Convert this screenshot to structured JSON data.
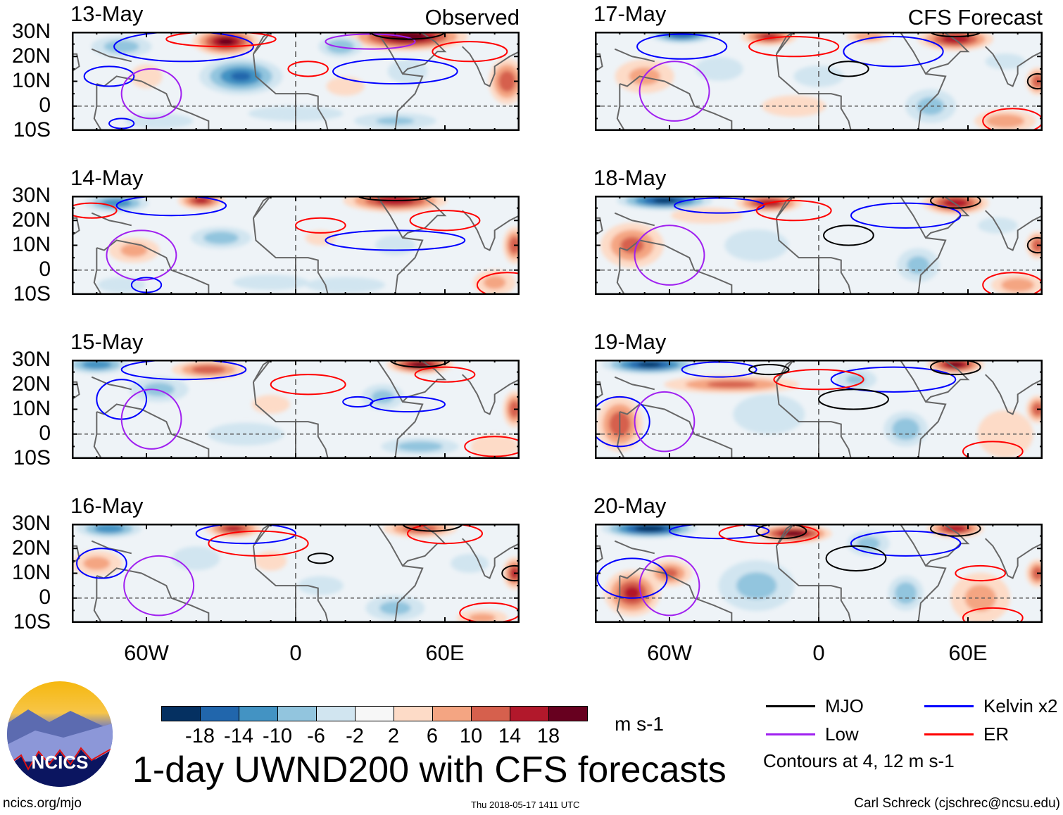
{
  "chart_data": {
    "type": "heatmap",
    "title": "1-day UWND200 with CFS forecasts",
    "units": "m s-1",
    "lon_range": [
      -90,
      90
    ],
    "lat_range": [
      -10,
      30
    ],
    "lat_ticks": [
      "30N",
      "20N",
      "10N",
      "0",
      "10S"
    ],
    "lon_ticks": [
      "60W",
      "0",
      "60E"
    ],
    "column_labels": {
      "observed": "Observed",
      "forecast": "CFS Forecast"
    },
    "colorbar": {
      "levels": [
        "-18",
        "-14",
        "-10",
        "-6",
        "-2",
        "2",
        "6",
        "10",
        "14",
        "18"
      ],
      "colors": [
        "#053061",
        "#2166ac",
        "#4393c3",
        "#92c5de",
        "#d1e5f0",
        "#f7f7f7",
        "#fddbc7",
        "#f4a582",
        "#d6604d",
        "#b2182b",
        "#67001f"
      ]
    },
    "legend": [
      {
        "label": "MJO",
        "color": "#000000"
      },
      {
        "label": "Kelvin x2",
        "color": "#0000ff"
      },
      {
        "label": "Low",
        "color": "#a020f0"
      },
      {
        "label": "ER",
        "color": "#ff0000"
      }
    ],
    "contour_note": "Contours at 4, 12 m s-1",
    "panels": [
      {
        "date": "13-May",
        "column": "observed",
        "blobs": [
          [
            -28,
            26,
            20,
            14,
            6
          ],
          [
            45,
            28,
            22,
            25,
            6
          ],
          [
            85,
            10,
            14,
            8,
            10
          ],
          [
            -60,
            12,
            6,
            8,
            6
          ],
          [
            20,
            8,
            5,
            10,
            5
          ],
          [
            -22,
            12,
            -15,
            18,
            8
          ],
          [
            -70,
            24,
            -9,
            14,
            5
          ],
          [
            18,
            24,
            -10,
            10,
            5
          ],
          [
            45,
            14,
            -6,
            10,
            6
          ],
          [
            -55,
            -6,
            -5,
            18,
            4
          ],
          [
            40,
            -6,
            -7,
            20,
            4
          ],
          [
            0,
            -3,
            -5,
            25,
            4
          ]
        ],
        "contours": [
          [
            "kelvin",
            -45,
            24,
            28,
            6
          ],
          [
            "kelvin",
            -75,
            12,
            10,
            4
          ],
          [
            "kelvin",
            40,
            14,
            25,
            5
          ],
          [
            "er",
            -30,
            27,
            22,
            3
          ],
          [
            "er",
            5,
            15,
            8,
            3
          ],
          [
            "er",
            70,
            22,
            15,
            4
          ],
          [
            "low",
            -58,
            5,
            12,
            10
          ],
          [
            "low",
            30,
            26,
            18,
            3
          ],
          [
            "mjo",
            45,
            30,
            15,
            3
          ],
          [
            "kelvin",
            -70,
            -7,
            5,
            2
          ]
        ]
      },
      {
        "date": "14-May",
        "column": "observed",
        "blobs": [
          [
            -38,
            28,
            16,
            10,
            4
          ],
          [
            40,
            28,
            18,
            22,
            5
          ],
          [
            88,
            10,
            14,
            5,
            8
          ],
          [
            -65,
            8,
            8,
            12,
            6
          ],
          [
            10,
            13,
            5,
            8,
            4
          ],
          [
            80,
            -5,
            8,
            10,
            6
          ],
          [
            -72,
            27,
            -14,
            14,
            4
          ],
          [
            -30,
            13,
            -9,
            14,
            5
          ],
          [
            -70,
            -6,
            -6,
            12,
            4
          ],
          [
            20,
            -6,
            -6,
            20,
            4
          ],
          [
            40,
            10,
            -6,
            10,
            5
          ],
          [
            -10,
            -5,
            -5,
            20,
            4
          ]
        ],
        "contours": [
          [
            "kelvin",
            -50,
            26,
            22,
            4
          ],
          [
            "kelvin",
            40,
            12,
            28,
            4
          ],
          [
            "er",
            -82,
            24,
            10,
            3
          ],
          [
            "er",
            10,
            18,
            10,
            3
          ],
          [
            "er",
            60,
            20,
            14,
            4
          ],
          [
            "low",
            -62,
            6,
            14,
            10
          ],
          [
            "mjo",
            40,
            30,
            15,
            2
          ],
          [
            "er",
            85,
            -6,
            12,
            5
          ],
          [
            "kelvin",
            -60,
            -6,
            6,
            3
          ]
        ]
      },
      {
        "date": "15-May",
        "column": "observed",
        "blobs": [
          [
            -35,
            26,
            14,
            16,
            4
          ],
          [
            50,
            28,
            20,
            14,
            4
          ],
          [
            88,
            10,
            14,
            5,
            8
          ],
          [
            -10,
            12,
            5,
            10,
            5
          ],
          [
            80,
            -5,
            6,
            12,
            6
          ],
          [
            -80,
            28,
            -14,
            14,
            4
          ],
          [
            -55,
            18,
            -8,
            14,
            6
          ],
          [
            35,
            15,
            -8,
            10,
            6
          ],
          [
            50,
            -5,
            -9,
            18,
            4
          ],
          [
            -20,
            0,
            -5,
            20,
            6
          ]
        ],
        "contours": [
          [
            "kelvin",
            -45,
            26,
            25,
            4
          ],
          [
            "kelvin",
            45,
            12,
            15,
            3
          ],
          [
            "kelvin",
            -70,
            14,
            10,
            8
          ],
          [
            "er",
            5,
            20,
            15,
            4
          ],
          [
            "er",
            60,
            24,
            12,
            3
          ],
          [
            "er",
            80,
            -5,
            12,
            4
          ],
          [
            "low",
            -58,
            6,
            12,
            12
          ],
          [
            "mjo",
            50,
            30,
            12,
            3
          ],
          [
            "kelvin",
            25,
            13,
            6,
            2
          ]
        ]
      },
      {
        "date": "16-May",
        "column": "observed",
        "blobs": [
          [
            -25,
            28,
            16,
            12,
            4
          ],
          [
            50,
            28,
            14,
            16,
            4
          ],
          [
            88,
            10,
            16,
            5,
            7
          ],
          [
            -80,
            14,
            8,
            12,
            6
          ],
          [
            -10,
            15,
            6,
            8,
            5
          ],
          [
            75,
            -8,
            8,
            12,
            4
          ],
          [
            -75,
            28,
            -14,
            14,
            4
          ],
          [
            -40,
            16,
            -6,
            12,
            6
          ],
          [
            40,
            -4,
            -8,
            14,
            6
          ],
          [
            10,
            5,
            -5,
            12,
            5
          ],
          [
            70,
            14,
            -5,
            10,
            5
          ]
        ],
        "contours": [
          [
            "kelvin",
            -20,
            26,
            20,
            4
          ],
          [
            "kelvin",
            -78,
            14,
            10,
            6
          ],
          [
            "er",
            -15,
            22,
            20,
            5
          ],
          [
            "er",
            60,
            26,
            15,
            4
          ],
          [
            "er",
            78,
            -6,
            12,
            4
          ],
          [
            "low",
            -55,
            5,
            14,
            12
          ],
          [
            "mjo",
            10,
            16,
            5,
            2
          ],
          [
            "mjo",
            55,
            30,
            12,
            3
          ],
          [
            "mjo",
            88,
            10,
            5,
            3
          ]
        ]
      },
      {
        "date": "17-May",
        "column": "forecast",
        "blobs": [
          [
            -20,
            28,
            16,
            12,
            4
          ],
          [
            55,
            27,
            18,
            16,
            5
          ],
          [
            88,
            10,
            14,
            5,
            6
          ],
          [
            -70,
            12,
            8,
            14,
            8
          ],
          [
            75,
            -6,
            10,
            14,
            5
          ],
          [
            20,
            28,
            10,
            10,
            3
          ],
          [
            -10,
            0,
            4,
            18,
            6
          ],
          [
            -55,
            29,
            -18,
            14,
            4
          ],
          [
            -40,
            15,
            -6,
            12,
            6
          ],
          [
            45,
            0,
            -8,
            12,
            8
          ],
          [
            0,
            12,
            -4,
            14,
            6
          ],
          [
            75,
            18,
            -6,
            10,
            4
          ]
        ],
        "contours": [
          [
            "kelvin",
            -55,
            24,
            18,
            5
          ],
          [
            "kelvin",
            30,
            22,
            20,
            6
          ],
          [
            "er",
            -10,
            24,
            18,
            4
          ],
          [
            "er",
            78,
            -6,
            12,
            5
          ],
          [
            "low",
            -58,
            6,
            14,
            12
          ],
          [
            "mjo",
            12,
            15,
            8,
            3
          ],
          [
            "mjo",
            55,
            30,
            10,
            2
          ],
          [
            "mjo",
            88,
            10,
            4,
            3
          ]
        ]
      },
      {
        "date": "18-May",
        "column": "forecast",
        "blobs": [
          [
            -20,
            27,
            18,
            14,
            4
          ],
          [
            55,
            27,
            18,
            14,
            5
          ],
          [
            88,
            10,
            14,
            5,
            6
          ],
          [
            -75,
            10,
            12,
            14,
            10
          ],
          [
            80,
            -6,
            10,
            12,
            5
          ],
          [
            -45,
            22,
            6,
            18,
            4
          ],
          [
            -62,
            28,
            -20,
            20,
            4
          ],
          [
            -25,
            10,
            -6,
            16,
            8
          ],
          [
            40,
            2,
            -8,
            10,
            8
          ],
          [
            72,
            18,
            -6,
            10,
            4
          ]
        ],
        "contours": [
          [
            "kelvin",
            -40,
            26,
            18,
            3
          ],
          [
            "kelvin",
            35,
            22,
            22,
            5
          ],
          [
            "er",
            -10,
            24,
            15,
            4
          ],
          [
            "er",
            78,
            -6,
            12,
            5
          ],
          [
            "low",
            -60,
            6,
            14,
            12
          ],
          [
            "mjo",
            12,
            14,
            10,
            4
          ],
          [
            "mjo",
            55,
            28,
            10,
            3
          ],
          [
            "mjo",
            88,
            10,
            4,
            3
          ]
        ]
      },
      {
        "date": "19-May",
        "column": "forecast",
        "blobs": [
          [
            -35,
            20,
            12,
            30,
            4
          ],
          [
            55,
            28,
            20,
            12,
            4
          ],
          [
            -80,
            4,
            14,
            10,
            12
          ],
          [
            88,
            10,
            14,
            5,
            6
          ],
          [
            75,
            0,
            6,
            14,
            12
          ],
          [
            -68,
            28,
            -20,
            20,
            4
          ],
          [
            -20,
            8,
            -6,
            18,
            10
          ],
          [
            35,
            2,
            -10,
            10,
            8
          ],
          [
            15,
            22,
            -7,
            10,
            5
          ]
        ],
        "contours": [
          [
            "kelvin",
            -40,
            26,
            15,
            3
          ],
          [
            "kelvin",
            30,
            22,
            25,
            5
          ],
          [
            "kelvin",
            -80,
            5,
            12,
            10
          ],
          [
            "er",
            0,
            22,
            18,
            4
          ],
          [
            "er",
            70,
            -7,
            12,
            4
          ],
          [
            "low",
            -62,
            5,
            12,
            12
          ],
          [
            "mjo",
            -20,
            26,
            8,
            2
          ],
          [
            "mjo",
            14,
            14,
            14,
            4
          ],
          [
            "mjo",
            55,
            27,
            10,
            3
          ]
        ]
      },
      {
        "date": "20-May",
        "column": "forecast",
        "blobs": [
          [
            -10,
            26,
            20,
            16,
            4
          ],
          [
            55,
            28,
            18,
            12,
            4
          ],
          [
            -75,
            2,
            16,
            12,
            10
          ],
          [
            -60,
            10,
            12,
            10,
            6
          ],
          [
            88,
            10,
            14,
            5,
            6
          ],
          [
            65,
            0,
            8,
            14,
            12
          ],
          [
            -68,
            28,
            -22,
            20,
            4
          ],
          [
            -25,
            5,
            -8,
            18,
            12
          ],
          [
            35,
            2,
            -10,
            8,
            8
          ],
          [
            20,
            22,
            -8,
            10,
            6
          ]
        ],
        "contours": [
          [
            "kelvin",
            -40,
            27,
            20,
            3
          ],
          [
            "kelvin",
            35,
            22,
            22,
            5
          ],
          [
            "kelvin",
            -75,
            8,
            14,
            8
          ],
          [
            "er",
            -20,
            26,
            20,
            4
          ],
          [
            "er",
            65,
            10,
            10,
            3
          ],
          [
            "er",
            70,
            -8,
            12,
            4
          ],
          [
            "low",
            -60,
            5,
            12,
            12
          ],
          [
            "mjo",
            -15,
            27,
            10,
            3
          ],
          [
            "mjo",
            15,
            16,
            12,
            5
          ],
          [
            "mjo",
            55,
            28,
            10,
            3
          ]
        ]
      }
    ]
  },
  "logo": {
    "text": "NCICS"
  },
  "footer": {
    "left": "ncics.org/mjo",
    "center": "Thu 2018-05-17 1411 UTC",
    "right": "Carl Schreck (cjschrec@ncsu.edu)"
  }
}
